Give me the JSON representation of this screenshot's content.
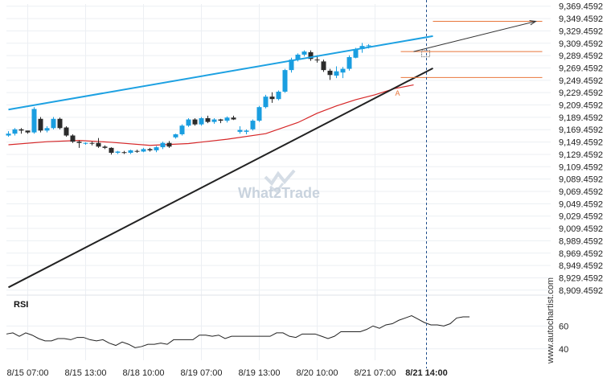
{
  "chart_data": {
    "type": "candlestick",
    "price_axis": {
      "ticks": [
        "9,369.4592",
        "9,349.4592",
        "9,329.4592",
        "9,309.4592",
        "9,289.4592",
        "9,269.4592",
        "9,249.4592",
        "9,229.4592",
        "9,209.4592",
        "9,189.4592",
        "9,169.4592",
        "9,149.4592",
        "9,129.4592",
        "9,109.4592",
        "9,089.4592",
        "9,069.4592",
        "9,049.4592",
        "9,029.4592",
        "9,009.4592",
        "8,989.4592",
        "8,969.4592",
        "8,949.4592",
        "8,929.4592",
        "8,909.4592"
      ],
      "range": [
        8904.0,
        9373.0
      ]
    },
    "time_axis": {
      "labels": [
        "8/15 07:00",
        "8/15 13:00",
        "8/18 10:00",
        "8/19 07:00",
        "8/19 13:00",
        "8/20 10:00",
        "8/21 07:00",
        "8/21 14:00"
      ],
      "label_bar_index": [
        3,
        12,
        21,
        30,
        39,
        48,
        57,
        65
      ]
    },
    "candles": [
      [
        9160,
        9167,
        9158,
        9163
      ],
      [
        9163,
        9172,
        9160,
        9170
      ],
      [
        9170,
        9172,
        9163,
        9168
      ],
      [
        9168,
        9168,
        9163,
        9165
      ],
      [
        9165,
        9206,
        9163,
        9203
      ],
      [
        9187,
        9190,
        9165,
        9168
      ],
      [
        9168,
        9175,
        9165,
        9172
      ],
      [
        9172,
        9190,
        9170,
        9187
      ],
      [
        9187,
        9189,
        9170,
        9172
      ],
      [
        9173,
        9175,
        9158,
        9160
      ],
      [
        9160,
        9162,
        9148,
        9150
      ],
      [
        9150,
        9152,
        9140,
        9148
      ],
      [
        9148,
        9149,
        9145,
        9148
      ],
      [
        9148,
        9150,
        9144,
        9147
      ],
      [
        9148,
        9156,
        9140,
        9142
      ],
      [
        9142,
        9144,
        9138,
        9140
      ],
      [
        9140,
        9141,
        9129,
        9132
      ],
      [
        9132,
        9135,
        9130,
        9134
      ],
      [
        9133,
        9135,
        9130,
        9132
      ],
      [
        9132,
        9137,
        9130,
        9136
      ],
      [
        9135,
        9137,
        9132,
        9134
      ],
      [
        9134,
        9140,
        9133,
        9138
      ],
      [
        9138,
        9140,
        9134,
        9136
      ],
      [
        9136,
        9143,
        9133,
        9141
      ],
      [
        9141,
        9150,
        9138,
        9148
      ],
      [
        9148,
        9151,
        9140,
        9142
      ],
      [
        9157,
        9163,
        9155,
        9162
      ],
      [
        9162,
        9178,
        9160,
        9176
      ],
      [
        9176,
        9188,
        9174,
        9186
      ],
      [
        9186,
        9188,
        9176,
        9178
      ],
      [
        9178,
        9190,
        9176,
        9188
      ],
      [
        9188,
        9192,
        9180,
        9182
      ],
      [
        9182,
        9188,
        9179,
        9186
      ],
      [
        9186,
        9187,
        9180,
        9184
      ],
      [
        9184,
        9191,
        9181,
        9189
      ],
      [
        9189,
        9192,
        9185,
        9186
      ],
      [
        9166,
        9175,
        9163,
        9169
      ],
      [
        9166,
        9170,
        9162,
        9168
      ],
      [
        9170,
        9186,
        9168,
        9184
      ],
      [
        9184,
        9208,
        9182,
        9206
      ],
      [
        9206,
        9226,
        9204,
        9223
      ],
      [
        9223,
        9230,
        9213,
        9219
      ],
      [
        9219,
        9233,
        9217,
        9231
      ],
      [
        9231,
        9268,
        9229,
        9266
      ],
      [
        9266,
        9286,
        9262,
        9283
      ],
      [
        9283,
        9293,
        9280,
        9291
      ],
      [
        9291,
        9298,
        9288,
        9296
      ],
      [
        9295,
        9298,
        9281,
        9284
      ],
      [
        9283,
        9290,
        9278,
        9282
      ],
      [
        9280,
        9283,
        9263,
        9266
      ],
      [
        9265,
        9268,
        9250,
        9258
      ],
      [
        9257,
        9272,
        9253,
        9264
      ],
      [
        9262,
        9271,
        9253,
        9268
      ],
      [
        9268,
        9290,
        9265,
        9287
      ],
      [
        9286,
        9302,
        9285,
        9300
      ],
      [
        9300,
        9310,
        9294,
        9305
      ],
      [
        9305,
        9308,
        9301,
        9306
      ]
    ],
    "candle_bar_index": [
      0,
      1,
      2,
      3,
      4,
      5,
      6,
      7,
      8,
      9,
      10,
      11,
      12,
      13,
      14,
      15,
      16,
      17,
      18,
      19,
      20,
      21,
      22,
      23,
      24,
      25,
      26,
      27,
      28,
      29,
      30,
      31,
      32,
      33,
      34,
      35,
      36,
      37,
      38,
      39,
      40,
      41,
      42,
      43,
      44,
      45,
      46,
      47,
      48,
      49,
      50,
      51,
      52,
      53,
      54,
      55,
      56
    ],
    "moving_average": {
      "color": "#d62728",
      "points": [
        [
          0,
          9145
        ],
        [
          6,
          9150
        ],
        [
          11,
          9152
        ],
        [
          16,
          9149
        ],
        [
          22,
          9144
        ],
        [
          28,
          9147
        ],
        [
          34,
          9154
        ],
        [
          40,
          9163
        ],
        [
          45,
          9181
        ],
        [
          48,
          9196
        ],
        [
          51,
          9208
        ],
        [
          54,
          9218
        ],
        [
          57,
          9226
        ],
        [
          60,
          9236
        ],
        [
          63,
          9242
        ]
      ]
    },
    "resistance_line": {
      "color": "#1da1e2",
      "from": [
        0,
        9202
      ],
      "to": [
        66,
        9321
      ]
    },
    "support_line": {
      "color": "#222222",
      "from": [
        0,
        8914
      ],
      "to": [
        66,
        9269
      ]
    },
    "levels": [
      {
        "color": "#e8763a",
        "price": 9345,
        "from_bar": 66,
        "to_bar": 83
      },
      {
        "color": "#e8763a",
        "price": 9296,
        "from_bar": 61,
        "to_bar": 83
      },
      {
        "color": "#e8763a",
        "price": 9254,
        "from_bar": 61,
        "to_bar": 83
      }
    ],
    "projection_arrow": {
      "color": "#333333",
      "from": [
        63,
        9296
      ],
      "to": [
        82,
        9345
      ]
    },
    "marker_label": {
      "text": "A",
      "bar": 61,
      "price": 9236
    },
    "current_time_bar": 65,
    "rsi": {
      "label": "RSI",
      "ticks": [
        "60",
        "40"
      ],
      "range": [
        30,
        87
      ],
      "values": [
        53,
        54,
        51,
        54,
        52,
        49,
        47,
        47,
        49,
        49,
        48,
        50,
        50,
        48,
        47,
        48,
        45,
        43,
        46,
        44,
        41,
        42,
        44,
        44,
        45,
        44,
        48,
        48,
        48,
        48,
        52,
        52,
        51,
        52,
        49,
        51,
        51,
        51,
        51,
        51,
        51,
        51,
        54,
        54,
        51,
        50,
        53,
        53,
        53,
        51,
        49,
        51,
        55,
        55,
        55,
        55,
        57,
        60,
        58,
        61,
        62,
        65,
        67,
        69,
        66,
        63,
        61,
        61,
        60,
        62,
        67,
        68,
        68
      ]
    },
    "watermark": "What2Trade",
    "credit": "www.autochartist.com"
  }
}
